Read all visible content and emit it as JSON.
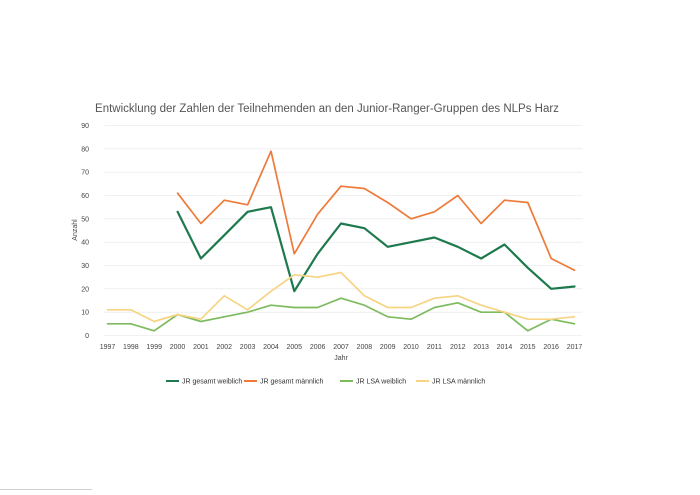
{
  "chart_data": {
    "type": "line",
    "title": "Entwicklung der Zahlen der Teilnehmenden an den Junior-Ranger-Gruppen des NLPs Harz",
    "xlabel": "Jahr",
    "ylabel": "Anzahl",
    "ylim": [
      0,
      90
    ],
    "yticks": [
      0,
      10,
      20,
      30,
      40,
      50,
      60,
      70,
      80,
      90
    ],
    "grid": "horizontal",
    "legend_position": "bottom",
    "categories": [
      "1997",
      "1998",
      "1999",
      "2000",
      "2001",
      "2002",
      "2003",
      "2004",
      "2005",
      "2006",
      "2007",
      "2008",
      "2009",
      "2010",
      "2011",
      "2012",
      "2013",
      "2014",
      "2015",
      "2016",
      "2017"
    ],
    "series": [
      {
        "name": "JR gesamt weiblich",
        "color": "#1e7a4e",
        "width": 2.2,
        "values": [
          null,
          null,
          null,
          53,
          33,
          43,
          53,
          55,
          19,
          35,
          48,
          46,
          38,
          40,
          42,
          38,
          33,
          39,
          29,
          20,
          21
        ]
      },
      {
        "name": "JR gesamt männlich",
        "color": "#ee7a3a",
        "width": 1.7,
        "values": [
          null,
          null,
          null,
          61,
          48,
          58,
          56,
          79,
          35,
          52,
          64,
          63,
          57,
          50,
          53,
          60,
          48,
          58,
          57,
          33,
          28
        ]
      },
      {
        "name": "JR LSA weiblich",
        "color": "#7dbb5e",
        "width": 1.7,
        "values": [
          5,
          5,
          2,
          9,
          6,
          8,
          10,
          13,
          12,
          12,
          16,
          13,
          8,
          7,
          12,
          14,
          10,
          10,
          2,
          7,
          5
        ]
      },
      {
        "name": "JR LSA männlich",
        "color": "#f6d483",
        "width": 1.7,
        "values": [
          11,
          11,
          6,
          9,
          7,
          17,
          11,
          19,
          26,
          25,
          27,
          17,
          12,
          12,
          16,
          17,
          13,
          10,
          7,
          7,
          8
        ]
      }
    ]
  }
}
